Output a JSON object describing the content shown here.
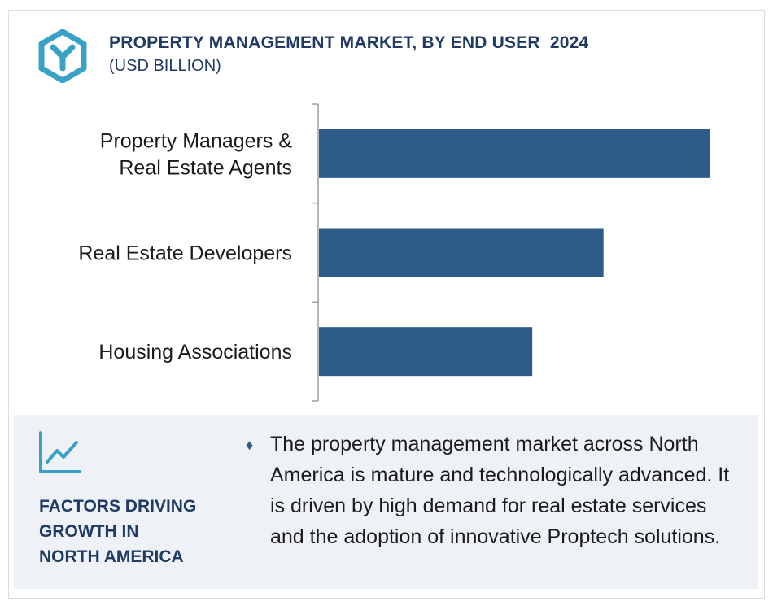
{
  "header": {
    "title": "PROPERTY MANAGEMENT MARKET, BY END USER  2024",
    "subtitle": "(USD BILLION)",
    "logo_icon": "hexagon-y-logo-icon"
  },
  "colors": {
    "bar": "#2c5b8a",
    "title": "#1f3a63",
    "logo": "#3aa1c6",
    "panel": "#eef1f6"
  },
  "chart_data": {
    "type": "bar",
    "orientation": "horizontal",
    "categories": [
      [
        "Property Managers &",
        "Real Estate Agents"
      ],
      [
        "Real Estate Developers"
      ],
      [
        "Housing Associations"
      ]
    ],
    "values": [
      1.0,
      0.727,
      0.545
    ],
    "title": "PROPERTY MANAGEMENT MARKET, BY END USER  2024",
    "subtitle": "(USD BILLION)",
    "xlabel": "",
    "ylabel": "",
    "xlim": [
      0,
      1
    ],
    "grid": false,
    "legend": "none"
  },
  "factors": {
    "icon": "line-chart-growth-icon",
    "title_lines": [
      "FACTORS DRIVING",
      "GROWTH IN",
      "NORTH AMERICA"
    ],
    "bullet_icon": "diamond-bullet-icon",
    "bullet_glyph": "♦",
    "text": "The property management market across North America is mature and technologically advanced. It is driven by high demand for real estate services and the adoption of innovative Proptech solutions."
  }
}
